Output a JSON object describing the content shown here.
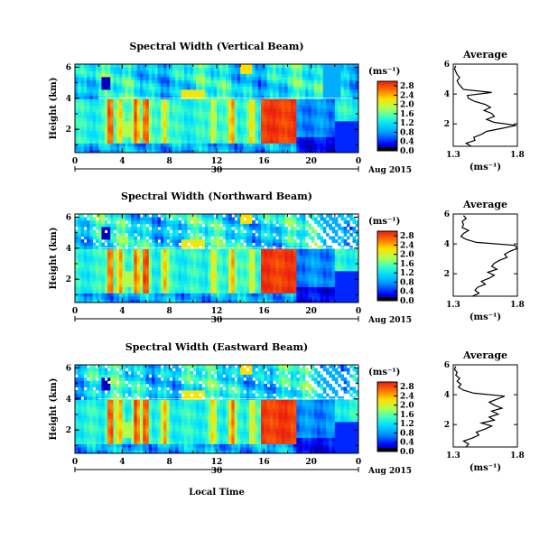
{
  "figure": {
    "xlabel": "Local Time"
  },
  "chart_data": [
    {
      "type": "heatmap",
      "title": "Spectral Width (Vertical Beam)",
      "ylabel": "Height (km)",
      "yticks": [
        "2",
        "4",
        "6"
      ],
      "ylim": [
        0.5,
        6.2
      ],
      "xlim": [
        0,
        24
      ],
      "xticks": [
        "0",
        "4",
        "8",
        "12",
        "16",
        "20",
        "0"
      ],
      "date_day": "30",
      "date_month": "Aug 2015",
      "colorbar": {
        "unit": "(ms⁻¹)",
        "ticks": [
          "0.0",
          "0.4",
          "0.8",
          "1.2",
          "1.6",
          "2.0",
          "2.4",
          "2.8"
        ],
        "range": [
          0,
          3.0
        ]
      },
      "profile": {
        "title": "Average",
        "xlabel": "(ms⁻¹)",
        "xticks": [
          "1.3",
          "1.8"
        ],
        "xlim": [
          1.3,
          1.8
        ],
        "yticks": [
          "2",
          "4",
          "6"
        ],
        "ylim": [
          0.5,
          6.0
        ],
        "heights": [
          0.5,
          0.7,
          0.9,
          1.1,
          1.3,
          1.5,
          1.7,
          1.9,
          2.1,
          2.3,
          2.5,
          2.7,
          2.9,
          3.1,
          3.3,
          3.5,
          3.7,
          3.9,
          4.1,
          4.3,
          4.5,
          4.7,
          4.9,
          5.1,
          5.3,
          5.5,
          5.7,
          5.9
        ],
        "values": [
          1.44,
          1.4,
          1.47,
          1.46,
          1.52,
          1.56,
          1.68,
          1.79,
          1.62,
          1.56,
          1.62,
          1.6,
          1.54,
          1.59,
          1.55,
          1.47,
          1.42,
          1.41,
          1.6,
          1.38,
          1.36,
          1.34,
          1.33,
          1.35,
          1.33,
          1.32,
          1.31,
          1.32
        ]
      }
    },
    {
      "type": "heatmap",
      "title": "Spectral Width (Northward Beam)",
      "ylabel": "Height (km)",
      "yticks": [
        "2",
        "4",
        "6"
      ],
      "ylim": [
        0.5,
        6.2
      ],
      "xlim": [
        0,
        24
      ],
      "xticks": [
        "0",
        "4",
        "8",
        "12",
        "16",
        "20",
        "0"
      ],
      "date_day": "30",
      "date_month": "Aug 2015",
      "colorbar": {
        "unit": "(ms⁻¹)",
        "ticks": [
          "0.0",
          "0.4",
          "0.8",
          "1.2",
          "1.6",
          "2.0",
          "2.4",
          "2.8"
        ],
        "range": [
          0,
          3.0
        ]
      },
      "profile": {
        "title": "Average",
        "xlabel": "(ms⁻¹)",
        "xticks": [
          "1.3",
          "1.8"
        ],
        "xlim": [
          1.3,
          1.8
        ],
        "yticks": [
          "2",
          "4",
          "6"
        ],
        "ylim": [
          0.5,
          6.0
        ],
        "heights": [
          0.5,
          0.7,
          0.9,
          1.1,
          1.3,
          1.5,
          1.7,
          1.9,
          2.1,
          2.3,
          2.5,
          2.7,
          2.9,
          3.1,
          3.3,
          3.5,
          3.7,
          3.9,
          4.1,
          4.3,
          4.5,
          4.7,
          4.9,
          5.1,
          5.3,
          5.5,
          5.7,
          5.9
        ],
        "values": [
          1.45,
          1.5,
          1.47,
          1.49,
          1.55,
          1.52,
          1.58,
          1.62,
          1.57,
          1.64,
          1.6,
          1.62,
          1.66,
          1.72,
          1.7,
          1.74,
          1.8,
          1.78,
          1.48,
          1.4,
          1.36,
          1.38,
          1.42,
          1.37,
          1.38,
          1.37,
          1.4,
          1.38
        ]
      }
    },
    {
      "type": "heatmap",
      "title": "Spectral Width (Eastward Beam)",
      "ylabel": "Height (km)",
      "yticks": [
        "2",
        "4",
        "6"
      ],
      "ylim": [
        0.5,
        6.2
      ],
      "xlim": [
        0,
        24
      ],
      "xticks": [
        "0",
        "4",
        "8",
        "12",
        "16",
        "20",
        "0"
      ],
      "date_day": "30",
      "date_month": "Aug 2015",
      "colorbar": {
        "unit": "(ms⁻¹)",
        "ticks": [
          "0.0",
          "0.4",
          "0.8",
          "1.2",
          "1.6",
          "2.0",
          "2.4",
          "2.8"
        ],
        "range": [
          0,
          3.0
        ]
      },
      "profile": {
        "title": "Average",
        "xlabel": "(ms⁻¹)",
        "xticks": [
          "1.3",
          "1.8"
        ],
        "xlim": [
          1.3,
          1.8
        ],
        "yticks": [
          "2",
          "4",
          "6"
        ],
        "ylim": [
          0.5,
          6.0
        ],
        "heights": [
          0.5,
          0.7,
          0.9,
          1.1,
          1.3,
          1.5,
          1.7,
          1.9,
          2.1,
          2.3,
          2.5,
          2.7,
          2.9,
          3.1,
          3.3,
          3.5,
          3.7,
          3.9,
          4.1,
          4.3,
          4.5,
          4.7,
          4.9,
          5.1,
          5.3,
          5.5,
          5.7,
          5.9
        ],
        "values": [
          1.4,
          1.42,
          1.38,
          1.45,
          1.5,
          1.48,
          1.55,
          1.6,
          1.52,
          1.62,
          1.58,
          1.65,
          1.6,
          1.68,
          1.62,
          1.58,
          1.64,
          1.7,
          1.46,
          1.38,
          1.34,
          1.36,
          1.33,
          1.35,
          1.32,
          1.33,
          1.31,
          1.32
        ]
      }
    }
  ]
}
